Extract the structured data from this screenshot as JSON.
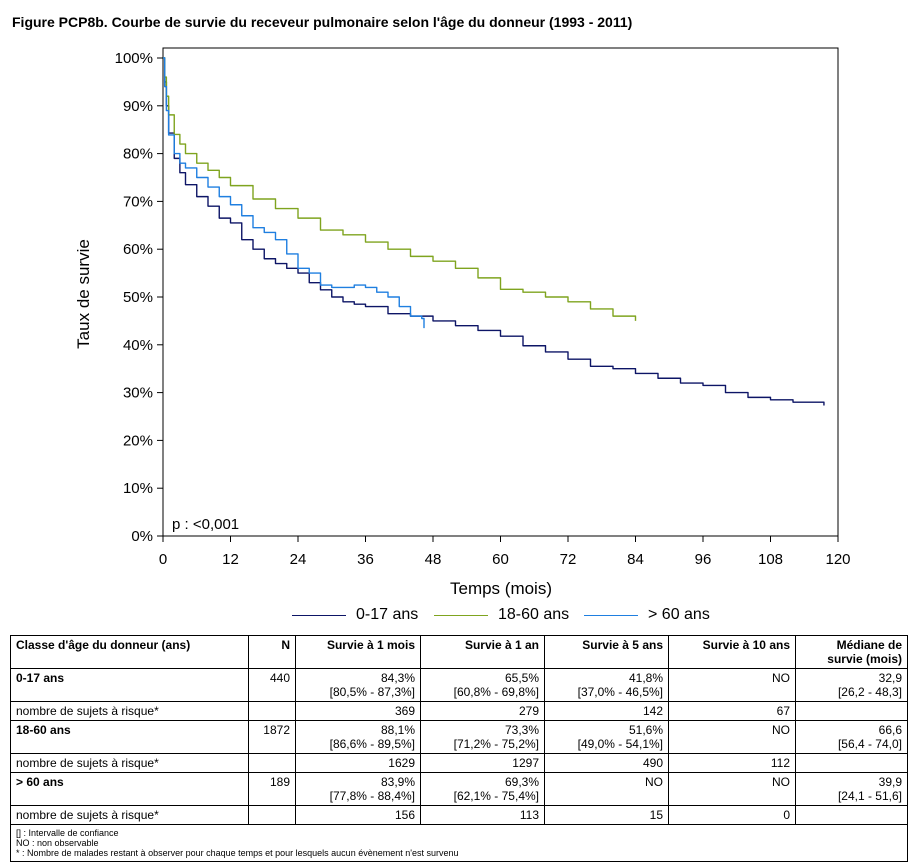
{
  "title": "Figure PCP8b. Courbe de survie du receveur pulmonaire selon l'âge du donneur (1993 - 2011)",
  "chart_data": {
    "type": "line",
    "xlabel": "Temps (mois)",
    "ylabel": "Taux de survie",
    "xlim": [
      0,
      120
    ],
    "ylim": [
      0,
      100
    ],
    "xticks": [
      "0",
      "12",
      "24",
      "36",
      "48",
      "60",
      "72",
      "84",
      "96",
      "108",
      "120"
    ],
    "yticks": [
      "0%",
      "10%",
      "20%",
      "30%",
      "40%",
      "50%",
      "60%",
      "70%",
      "80%",
      "90%",
      "100%"
    ],
    "grid": false,
    "legend_position": "bottom",
    "annotation": "p : <0,001",
    "series": [
      {
        "name": "0-17 ans",
        "color": "#0d1566",
        "points": [
          [
            0,
            100
          ],
          [
            0.3,
            95
          ],
          [
            0.6,
            90
          ],
          [
            1,
            84.3
          ],
          [
            2,
            79
          ],
          [
            3,
            76
          ],
          [
            4,
            73.5
          ],
          [
            6,
            71
          ],
          [
            8,
            69
          ],
          [
            10,
            66.5
          ],
          [
            12,
            65.5
          ],
          [
            14,
            62
          ],
          [
            16,
            60
          ],
          [
            18,
            58
          ],
          [
            20,
            57
          ],
          [
            22,
            56
          ],
          [
            24,
            55
          ],
          [
            26,
            53
          ],
          [
            28,
            51.5
          ],
          [
            30,
            50
          ],
          [
            32,
            49
          ],
          [
            34,
            48.5
          ],
          [
            36,
            48
          ],
          [
            40,
            46.5
          ],
          [
            44,
            46
          ],
          [
            48,
            45
          ],
          [
            52,
            44
          ],
          [
            56,
            43
          ],
          [
            60,
            41.8
          ],
          [
            64,
            39.8
          ],
          [
            68,
            38.5
          ],
          [
            72,
            37
          ],
          [
            76,
            35.5
          ],
          [
            80,
            35
          ],
          [
            84,
            34
          ],
          [
            88,
            33
          ],
          [
            92,
            32
          ],
          [
            96,
            31.5
          ],
          [
            100,
            30
          ],
          [
            104,
            29
          ],
          [
            108,
            28.5
          ],
          [
            112,
            28
          ],
          [
            116,
            28
          ],
          [
            117.5,
            27.3
          ]
        ]
      },
      {
        "name": "18-60 ans",
        "color": "#7fa41f",
        "points": [
          [
            0,
            100
          ],
          [
            0.3,
            96
          ],
          [
            0.6,
            92
          ],
          [
            1,
            88.1
          ],
          [
            2,
            84
          ],
          [
            3,
            82
          ],
          [
            4,
            80
          ],
          [
            6,
            78
          ],
          [
            8,
            76.5
          ],
          [
            10,
            75
          ],
          [
            12,
            73.3
          ],
          [
            16,
            70.5
          ],
          [
            20,
            68.5
          ],
          [
            24,
            66.5
          ],
          [
            28,
            64
          ],
          [
            32,
            63
          ],
          [
            36,
            61.5
          ],
          [
            40,
            60
          ],
          [
            44,
            58.5
          ],
          [
            48,
            57.5
          ],
          [
            52,
            56
          ],
          [
            56,
            54
          ],
          [
            60,
            51.6
          ],
          [
            64,
            51
          ],
          [
            68,
            50
          ],
          [
            72,
            49
          ],
          [
            76,
            47.5
          ],
          [
            80,
            46
          ],
          [
            84,
            45
          ]
        ]
      },
      {
        "name": "> 60 ans",
        "color": "#1f7fe0",
        "points": [
          [
            0,
            100
          ],
          [
            0.3,
            94
          ],
          [
            0.6,
            89
          ],
          [
            1,
            83.9
          ],
          [
            2,
            80
          ],
          [
            3,
            78
          ],
          [
            4,
            77
          ],
          [
            6,
            75
          ],
          [
            8,
            73
          ],
          [
            10,
            71
          ],
          [
            12,
            69.3
          ],
          [
            14,
            67
          ],
          [
            16,
            64.5
          ],
          [
            18,
            63.5
          ],
          [
            20,
            62
          ],
          [
            22,
            59
          ],
          [
            24,
            56
          ],
          [
            26,
            55
          ],
          [
            28,
            52.5
          ],
          [
            30,
            52
          ],
          [
            34,
            52.5
          ],
          [
            36,
            52
          ],
          [
            38,
            51
          ],
          [
            40,
            50
          ],
          [
            42,
            48
          ],
          [
            44,
            46
          ],
          [
            46,
            45.5
          ],
          [
            46.4,
            43.5
          ]
        ]
      }
    ]
  },
  "table": {
    "headers": [
      "Classe d'âge du donneur (ans)",
      "N",
      "Survie à 1 mois",
      "Survie à 1 an",
      "Survie à 5 ans",
      "Survie à 10 ans",
      "Médiane de survie (mois)"
    ],
    "groups": [
      {
        "label": "0-17 ans",
        "n": "440",
        "s1m": "84,3%",
        "s1m_ci": "[80,5% - 87,3%]",
        "s1a": "65,5%",
        "s1a_ci": "[60,8% - 69,8%]",
        "s5a": "41,8%",
        "s5a_ci": "[37,0% - 46,5%]",
        "s10a": "NO",
        "s10a_ci": "",
        "median": "32,9",
        "median_ci": "[26,2 - 48,3]",
        "risk_label": "nombre de sujets à risque*",
        "risk": [
          "369",
          "279",
          "142",
          "67"
        ]
      },
      {
        "label": "18-60 ans",
        "n": "1872",
        "s1m": "88,1%",
        "s1m_ci": "[86,6% - 89,5%]",
        "s1a": "73,3%",
        "s1a_ci": "[71,2% - 75,2%]",
        "s5a": "51,6%",
        "s5a_ci": "[49,0% - 54,1%]",
        "s10a": "NO",
        "s10a_ci": "",
        "median": "66,6",
        "median_ci": "[56,4 - 74,0]",
        "risk_label": "nombre de sujets à risque*",
        "risk": [
          "1629",
          "1297",
          "490",
          "112"
        ]
      },
      {
        "label": "> 60 ans",
        "n": "189",
        "s1m": "83,9%",
        "s1m_ci": "[77,8% - 88,4%]",
        "s1a": "69,3%",
        "s1a_ci": "[62,1% - 75,4%]",
        "s5a": "NO",
        "s5a_ci": "",
        "s10a": "NO",
        "s10a_ci": "",
        "median": "39,9",
        "median_ci": "[24,1 - 51,6]",
        "risk_label": "nombre de sujets à risque*",
        "risk": [
          "156",
          "113",
          "15",
          "0"
        ]
      }
    ],
    "footnotes": [
      "[] : Intervalle de confiance",
      "NO : non observable",
      "* : Nombre de malades restant à observer pour chaque temps et pour lesquels aucun évènement n'est survenu"
    ]
  }
}
